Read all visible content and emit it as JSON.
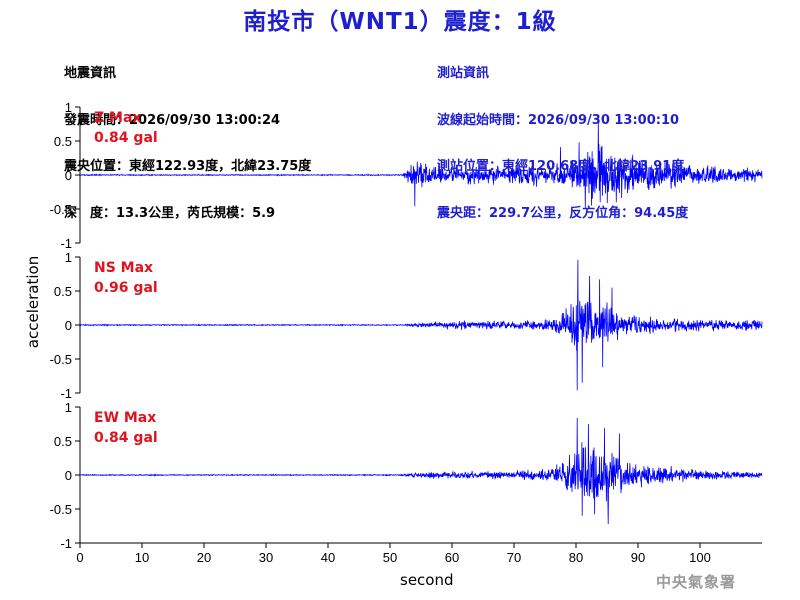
{
  "header": {
    "title": "南投市（WNT1）震度：1級"
  },
  "quake_info": {
    "lines": [
      "地震資訊",
      "發震時間：2026/09/30 13:00:24",
      "震央位置：東經122.93度，北緯23.75度",
      "深　度：13.3公里，芮氏規模：5.9"
    ]
  },
  "station_info": {
    "lines": [
      "測站資訊",
      "波線起始時間：2026/09/30 13:00:10",
      "測站位置：東經120.68度，北緯23.91度",
      "震央距：229.7公里，反方位角：94.45度"
    ]
  },
  "footer": {
    "agency": "中央氣象署"
  },
  "colors": {
    "trace": "#0000ff",
    "max_label": "#e0141e",
    "title": "#1f1fd0"
  },
  "chart_data": {
    "type": "line",
    "xlabel": "second",
    "ylabel": "acceleration",
    "xlim": [
      0,
      110
    ],
    "xticks": [
      "0",
      "10",
      "20",
      "30",
      "40",
      "50",
      "60",
      "70",
      "80",
      "90",
      "100"
    ],
    "yticks": [
      "1",
      "0.5",
      "0",
      "-0.5",
      "-1"
    ],
    "ylim": [
      -1,
      1
    ],
    "panels": [
      {
        "name": "Z",
        "max_label": "Z Max",
        "max_value": "0.84 gal",
        "envelope": [
          [
            0,
            0.01
          ],
          [
            52,
            0.01
          ],
          [
            53.5,
            0.2
          ],
          [
            54.5,
            0.32
          ],
          [
            57,
            0.18
          ],
          [
            65,
            0.17
          ],
          [
            75,
            0.2
          ],
          [
            80,
            0.28
          ],
          [
            84,
            0.55
          ],
          [
            86,
            0.4
          ],
          [
            92,
            0.3
          ],
          [
            100,
            0.2
          ],
          [
            110,
            0.12
          ]
        ],
        "peaks": [
          {
            "t": 83.6,
            "v": 0.84
          },
          {
            "t": 82.5,
            "v": -0.45
          },
          {
            "t": 80.5,
            "v": 0.48
          },
          {
            "t": 86.5,
            "v": -0.4
          },
          {
            "t": 54,
            "v": -0.46
          },
          {
            "t": 81.5,
            "v": -0.48
          },
          {
            "t": 77.5,
            "v": 0.41
          }
        ]
      },
      {
        "name": "NS",
        "max_label": "NS Max",
        "max_value": "0.96 gal",
        "envelope": [
          [
            0,
            0.01
          ],
          [
            52,
            0.01
          ],
          [
            55,
            0.05
          ],
          [
            62,
            0.08
          ],
          [
            70,
            0.08
          ],
          [
            76,
            0.12
          ],
          [
            79,
            0.3
          ],
          [
            80,
            0.75
          ],
          [
            81,
            0.55
          ],
          [
            84,
            0.45
          ],
          [
            88,
            0.22
          ],
          [
            95,
            0.12
          ],
          [
            110,
            0.1
          ]
        ],
        "peaks": [
          {
            "t": 80.3,
            "v": 0.96
          },
          {
            "t": 80.2,
            "v": -0.96
          },
          {
            "t": 81,
            "v": -0.85
          },
          {
            "t": 82.2,
            "v": 0.72
          },
          {
            "t": 83.8,
            "v": 0.67
          },
          {
            "t": 84.3,
            "v": -0.62
          },
          {
            "t": 85.8,
            "v": 0.55
          }
        ]
      },
      {
        "name": "EW",
        "max_label": "EW Max",
        "max_value": "0.84 gal",
        "envelope": [
          [
            0,
            0.01
          ],
          [
            52,
            0.01
          ],
          [
            54,
            0.06
          ],
          [
            62,
            0.07
          ],
          [
            70,
            0.08
          ],
          [
            76,
            0.13
          ],
          [
            79,
            0.35
          ],
          [
            81,
            0.6
          ],
          [
            85,
            0.55
          ],
          [
            87,
            0.32
          ],
          [
            92,
            0.18
          ],
          [
            100,
            0.1
          ],
          [
            110,
            0.06
          ]
        ],
        "peaks": [
          {
            "t": 80.2,
            "v": 0.84
          },
          {
            "t": 85.2,
            "v": -0.72
          },
          {
            "t": 82,
            "v": 0.75
          },
          {
            "t": 84.6,
            "v": 0.69
          },
          {
            "t": 81,
            "v": -0.6
          },
          {
            "t": 87,
            "v": 0.61
          },
          {
            "t": 83,
            "v": -0.58
          }
        ]
      }
    ]
  }
}
